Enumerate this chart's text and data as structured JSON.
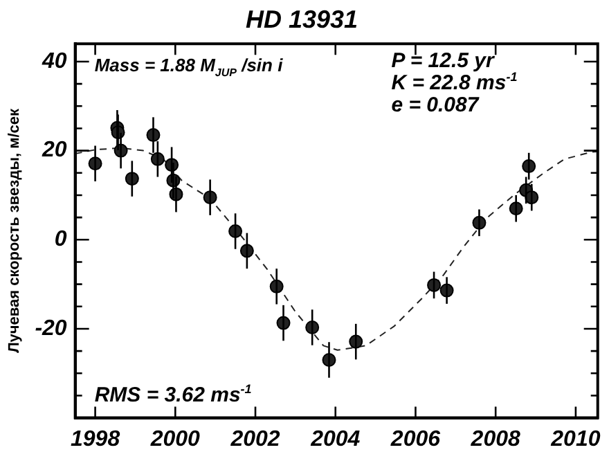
{
  "chart_data": {
    "type": "scatter",
    "title": "HD 13931",
    "ylabel": "Лучевая скорость звезды, м/сек",
    "annotations": [
      "Mass = 1.88 M$_{JUP}$ /sin i",
      "P = 12.5 yr",
      "K = 22.8 ms$^{-1}$",
      "e = 0.087",
      "RMS = 3.62 ms$^{-1}$"
    ],
    "xlim": [
      1997.5,
      2010.55
    ],
    "ylim": [
      -40,
      44
    ],
    "xticks": [
      1998,
      2000,
      2002,
      2004,
      2006,
      2008,
      2010
    ],
    "yticks": [
      {
        "value": -35,
        "label": null
      },
      {
        "value": -30,
        "label": null
      },
      {
        "value": -25,
        "label": null
      },
      -20,
      {
        "value": -15,
        "label": null
      },
      {
        "value": -10,
        "label": null
      },
      {
        "value": -5,
        "label": null
      },
      0,
      {
        "value": 5,
        "label": null
      },
      {
        "value": 10,
        "label": null
      },
      {
        "value": 15,
        "label": null
      },
      20,
      {
        "value": 25,
        "label": null
      },
      {
        "value": 30,
        "label": null
      },
      {
        "value": 35,
        "label": null
      },
      40
    ],
    "grid": false,
    "legend": false,
    "marker": "circle",
    "series": [
      {
        "color": "#222222",
        "x": [
          1998.0,
          1998.55,
          1998.57,
          1998.64,
          1998.92,
          1999.45,
          1999.56,
          1999.91,
          1999.95,
          2000.02,
          2000.87,
          2001.5,
          2001.79,
          2002.53,
          2002.7,
          2003.42,
          2003.84,
          2004.51,
          2006.46,
          2006.78,
          2007.59,
          2008.51,
          2008.76,
          2008.83,
          2008.9
        ],
        "values": [
          17.1,
          25.1,
          24.1,
          20,
          13.7,
          23.5,
          18.1,
          16.8,
          13.3,
          10.2,
          9.5,
          1.9,
          -2.5,
          -10.5,
          -18.7,
          -19.7,
          -27,
          -22.9,
          -10.2,
          -11.4,
          3.8,
          7,
          11.1,
          16.5,
          9.5
        ],
        "errors": [
          4,
          4,
          4,
          4,
          4,
          4,
          4,
          4,
          4,
          4,
          4,
          4,
          4,
          4,
          4,
          4,
          4,
          4,
          3,
          3,
          3,
          3,
          3,
          3,
          3
        ]
      },
      {
        "type": "line",
        "color": "#222222",
        "line_style": "dashed",
        "marker": "none",
        "x": [
          1997.5,
          1998.0,
          1998.64,
          1999.2,
          1999.7,
          2000.16,
          2000.87,
          2001.58,
          2002.3,
          2003.0,
          2003.7,
          2004.05,
          2004.76,
          2005.47,
          2006.18,
          2006.7,
          2007.2,
          2007.77,
          2008.48,
          2009.19,
          2009.72,
          2010.4,
          2010.55
        ],
        "values": [
          19.3,
          20.2,
          20.6,
          20.0,
          18.1,
          13.3,
          9.2,
          1.6,
          -6.7,
          -16.2,
          -23.8,
          -24.8,
          -23.8,
          -19.4,
          -13,
          -7.9,
          -1.6,
          4.8,
          10.2,
          14.9,
          18.1,
          19.7,
          19.8
        ]
      }
    ]
  }
}
